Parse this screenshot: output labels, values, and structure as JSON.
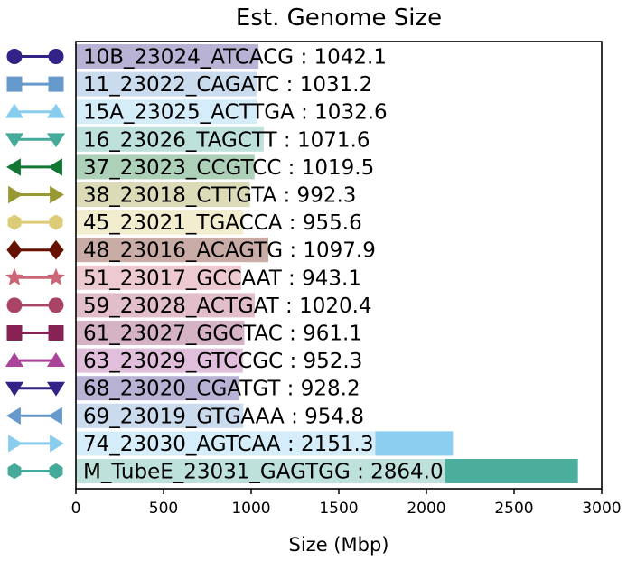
{
  "chart_data": {
    "type": "bar",
    "orientation": "horizontal",
    "title": "Est. Genome Size",
    "xlabel": "Size (Mbp)",
    "ylabel": "",
    "xlim": [
      0,
      3000
    ],
    "xticks": [
      "0",
      "500",
      "1000",
      "1500",
      "2000",
      "2500",
      "3000"
    ],
    "grid": false,
    "legend": "left",
    "series": [
      {
        "label": "10B_23024_ATCACG : 1042.1",
        "value": 1042.1,
        "color": "#332288",
        "marker": "circle"
      },
      {
        "label": "11_23022_CAGATC : 1031.2",
        "value": 1031.2,
        "color": "#6699cc",
        "marker": "square"
      },
      {
        "label": "15A_23025_ACTTGA : 1032.6",
        "value": 1032.6,
        "color": "#88ccee",
        "marker": "triangle-up"
      },
      {
        "label": "16_23026_TAGCTT : 1071.6",
        "value": 1071.6,
        "color": "#44aa99",
        "marker": "triangle-down"
      },
      {
        "label": "37_23023_CCGTCC : 1019.5",
        "value": 1019.5,
        "color": "#117733",
        "marker": "triangle-left"
      },
      {
        "label": "38_23018_CTTGTA : 992.3",
        "value": 992.3,
        "color": "#999933",
        "marker": "triangle-right"
      },
      {
        "label": "45_23021_TGACCA : 955.6",
        "value": 955.6,
        "color": "#ddcc77",
        "marker": "hexagon"
      },
      {
        "label": "48_23016_ACAGTG : 1097.9",
        "value": 1097.9,
        "color": "#661100",
        "marker": "diamond"
      },
      {
        "label": "51_23017_GCCAAT : 943.1",
        "value": 943.1,
        "color": "#cc6677",
        "marker": "star"
      },
      {
        "label": "59_23028_ACTGAT : 1020.4",
        "value": 1020.4,
        "color": "#aa4466",
        "marker": "circle"
      },
      {
        "label": "61_23027_GGCTAC : 961.1",
        "value": 961.1,
        "color": "#882255",
        "marker": "square"
      },
      {
        "label": "63_23029_GTCCGC : 952.3",
        "value": 952.3,
        "color": "#aa4499",
        "marker": "triangle-up"
      },
      {
        "label": "68_23020_CGATGT : 928.2",
        "value": 928.2,
        "color": "#332288",
        "marker": "triangle-down"
      },
      {
        "label": "69_23019_GTGAAA : 954.8",
        "value": 954.8,
        "color": "#6699cc",
        "marker": "triangle-left"
      },
      {
        "label": "74_23030_AGTCAA : 2151.3",
        "value": 2151.3,
        "color": "#88ccee",
        "marker": "triangle-right"
      },
      {
        "label": "M_TubeE_23031_GAGTGG : 2864.0",
        "value": 2864.0,
        "color": "#44aa99",
        "marker": "hexagon"
      }
    ]
  }
}
